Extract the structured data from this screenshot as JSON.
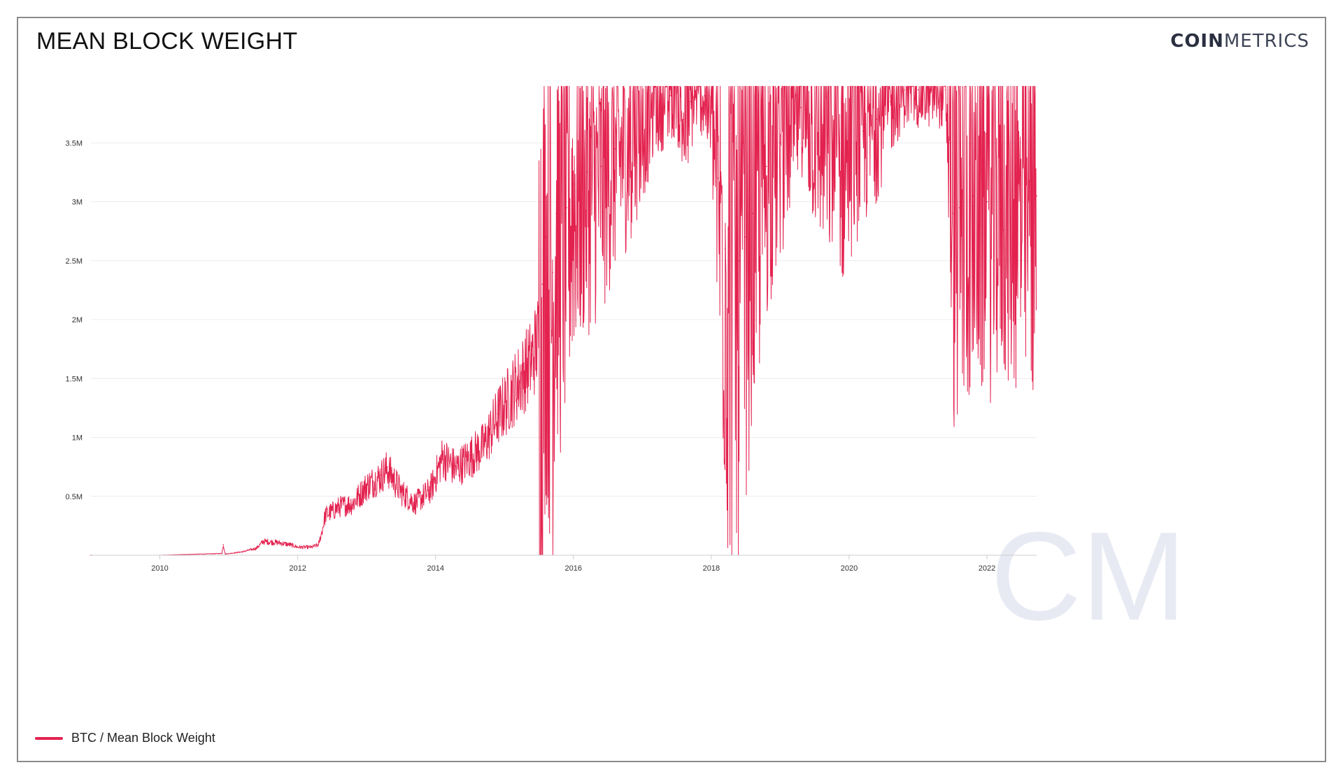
{
  "header": {
    "title": "MEAN BLOCK WEIGHT",
    "brand_bold": "COIN",
    "brand_light": "METRICS",
    "watermark": "CM"
  },
  "legend": {
    "label": "BTC / Mean Block Weight",
    "color": "#e3224f"
  },
  "chart_data": {
    "type": "line",
    "title": "MEAN BLOCK WEIGHT",
    "xlabel": "",
    "ylabel": "",
    "xlim": [
      2009.0,
      2022.72
    ],
    "ylim": [
      0,
      4000000
    ],
    "grid": true,
    "legend_position": "bottom-left",
    "y_ticks": [
      {
        "value": 500000,
        "label": "0.5M"
      },
      {
        "value": 1000000,
        "label": "1M"
      },
      {
        "value": 1500000,
        "label": "1.5M"
      },
      {
        "value": 2000000,
        "label": "2M"
      },
      {
        "value": 2500000,
        "label": "2.5M"
      },
      {
        "value": 3000000,
        "label": "3M"
      },
      {
        "value": 3500000,
        "label": "3.5M"
      }
    ],
    "x_ticks": [
      {
        "value": 2010,
        "label": "2010"
      },
      {
        "value": 2012,
        "label": "2012"
      },
      {
        "value": 2014,
        "label": "2014"
      },
      {
        "value": 2016,
        "label": "2016"
      },
      {
        "value": 2018,
        "label": "2018"
      },
      {
        "value": 2020,
        "label": "2020"
      },
      {
        "value": 2022,
        "label": "2022"
      }
    ],
    "series": [
      {
        "name": "BTC / Mean Block Weight",
        "color": "#e3224f",
        "x": [
          2009.0,
          2010.0,
          2010.3,
          2010.9,
          2010.92,
          2010.95,
          2011.2,
          2011.4,
          2011.5,
          2011.7,
          2011.9,
          2012.0,
          2012.2,
          2012.3,
          2012.35,
          2012.4,
          2012.5,
          2012.6,
          2012.8,
          2013.0,
          2013.2,
          2013.3,
          2013.5,
          2013.7,
          2013.8,
          2013.9,
          2013.95,
          2014.1,
          2014.3,
          2014.5,
          2014.7,
          2014.9,
          2015.0,
          2015.2,
          2015.4,
          2015.5,
          2015.55,
          2015.6,
          2015.7,
          2015.75,
          2015.8,
          2015.9,
          2016.0,
          2016.2,
          2016.4,
          2016.6,
          2016.8,
          2017.0,
          2017.2,
          2017.4,
          2017.5,
          2017.6,
          2017.7,
          2017.8,
          2017.9,
          2018.0,
          2018.1,
          2018.2,
          2018.3,
          2018.4,
          2018.5,
          2018.6,
          2018.8,
          2019.0,
          2019.2,
          2019.3,
          2019.5,
          2019.7,
          2019.9,
          2020.0,
          2020.2,
          2020.4,
          2020.6,
          2020.8,
          2021.0,
          2021.2,
          2021.4,
          2021.45,
          2021.5,
          2021.6,
          2021.8,
          2022.0,
          2022.2,
          2022.4,
          2022.6,
          2022.72
        ],
        "y": [
          0,
          0,
          5000,
          15000,
          90000,
          10000,
          30000,
          60000,
          120000,
          110000,
          90000,
          70000,
          70000,
          90000,
          200000,
          350000,
          380000,
          420000,
          450000,
          600000,
          680000,
          750000,
          550000,
          450000,
          500000,
          550000,
          600000,
          850000,
          750000,
          850000,
          950000,
          1200000,
          1300000,
          1500000,
          1700000,
          1900000,
          2300000,
          2700000,
          2400000,
          2900000,
          2800000,
          2950000,
          3150000,
          3250000,
          3300000,
          3450000,
          3550000,
          3700000,
          3850000,
          3900000,
          3920000,
          3700000,
          3850000,
          3950000,
          3900000,
          3800000,
          3200000,
          2600000,
          2300000,
          2500000,
          2700000,
          2900000,
          3300000,
          3500000,
          3700000,
          3800000,
          3600000,
          3500000,
          3400000,
          3500000,
          3600000,
          3700000,
          3850000,
          3950000,
          3950000,
          3950000,
          3950000,
          3500000,
          2900000,
          2950000,
          3050000,
          3000000,
          3100000,
          3050000,
          3000000,
          3050000
        ]
      }
    ]
  }
}
